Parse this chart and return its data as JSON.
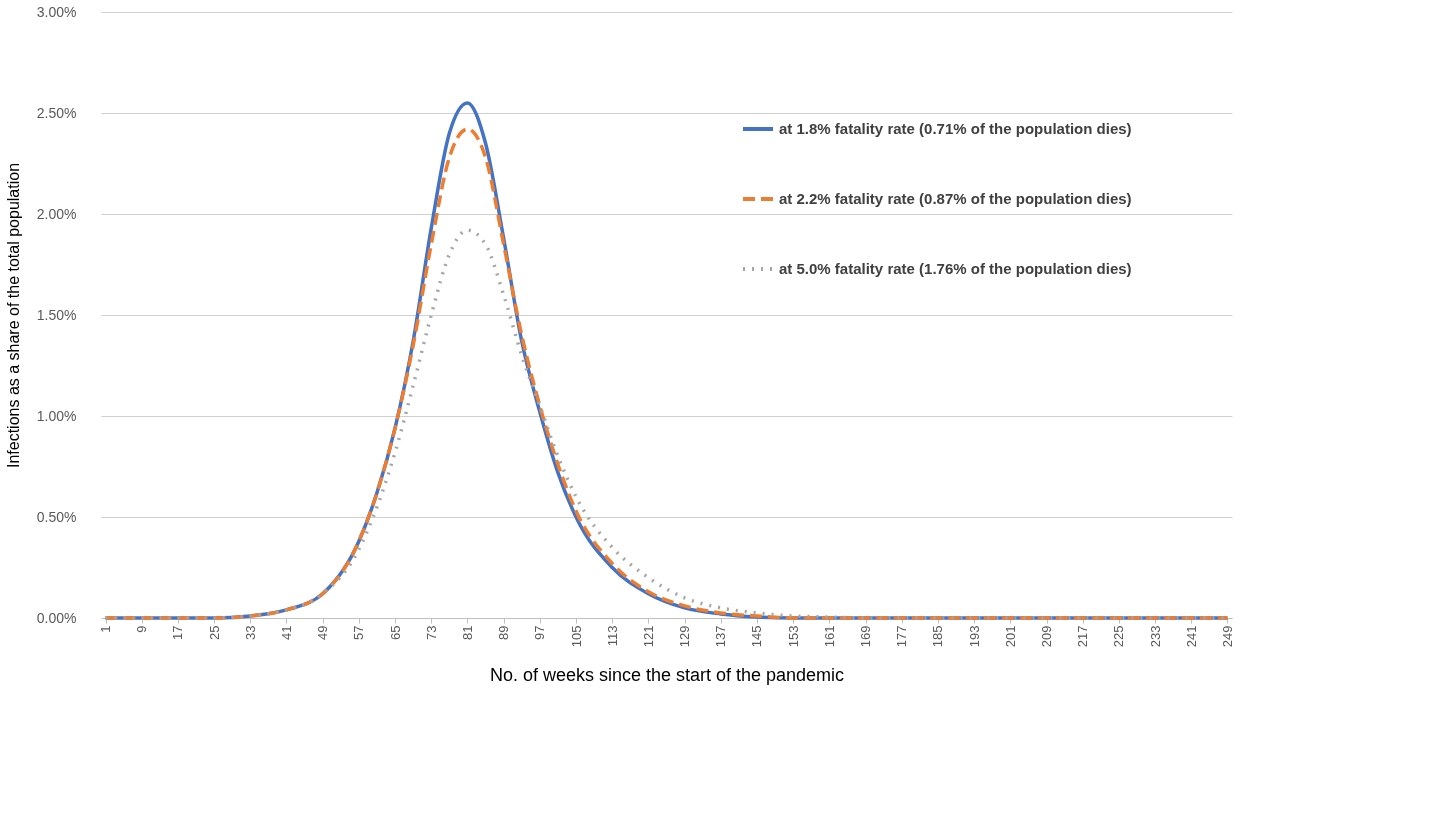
{
  "chart_data": {
    "type": "line",
    "xlabel": "No. of weeks since the start of the pandemic",
    "ylabel": "Infections as a share of the total population",
    "xlim": [
      0,
      250
    ],
    "xticks": [
      1,
      9,
      17,
      25,
      33,
      41,
      49,
      57,
      65,
      73,
      81,
      89,
      97,
      105,
      113,
      121,
      129,
      137,
      145,
      153,
      161,
      169,
      177,
      185,
      193,
      201,
      209,
      217,
      225,
      233,
      241,
      249
    ],
    "ylim": [
      0,
      3
    ],
    "yticks": [
      {
        "value": 0,
        "label": "0.00%"
      },
      {
        "value": 0.5,
        "label": "0.50%"
      },
      {
        "value": 1,
        "label": "1.00%"
      },
      {
        "value": 1.5,
        "label": "1.50%"
      },
      {
        "value": 2,
        "label": "2.00%"
      },
      {
        "value": 2.5,
        "label": "2.50%"
      },
      {
        "value": 3,
        "label": "3.00%"
      }
    ],
    "grid": "y",
    "legend": "top right",
    "marker": "none",
    "x": [
      1,
      25,
      33,
      41,
      49,
      57,
      61,
      65,
      69,
      73,
      77,
      81,
      85,
      89,
      93,
      97,
      101,
      105,
      113,
      121,
      129,
      137,
      145,
      153,
      161,
      169,
      249
    ],
    "series": [
      {
        "name": "at 1.8% fatality rate (0.71% of the population dies)",
        "color": "#4472c4",
        "line_style": "solid",
        "values": [
          0,
          0,
          0.01,
          0.04,
          0.12,
          0.38,
          0.62,
          0.94,
          1.37,
          1.93,
          2.4,
          2.55,
          2.35,
          1.88,
          1.37,
          1.02,
          0.72,
          0.5,
          0.25,
          0.12,
          0.05,
          0.02,
          0.005,
          0,
          0,
          0,
          0
        ]
      },
      {
        "name": "at 2.2% fatality rate (0.87% of the population dies)",
        "color": "#ed7d31",
        "line_style": "dashed",
        "values": [
          0,
          0,
          0.01,
          0.04,
          0.12,
          0.38,
          0.62,
          0.94,
          1.35,
          1.85,
          2.28,
          2.42,
          2.28,
          1.85,
          1.4,
          1.05,
          0.76,
          0.53,
          0.27,
          0.13,
          0.06,
          0.025,
          0.01,
          0,
          0,
          0,
          0
        ]
      },
      {
        "name": "at 5.0% fatality rate (1.76% of the population dies)",
        "color": "#a5a5a5",
        "line_style": "dotted",
        "values": [
          0,
          0,
          0.01,
          0.04,
          0.12,
          0.34,
          0.55,
          0.82,
          1.15,
          1.5,
          1.8,
          1.92,
          1.85,
          1.6,
          1.3,
          1.05,
          0.8,
          0.6,
          0.35,
          0.2,
          0.1,
          0.05,
          0.025,
          0.01,
          0.005,
          0,
          0
        ]
      }
    ]
  }
}
